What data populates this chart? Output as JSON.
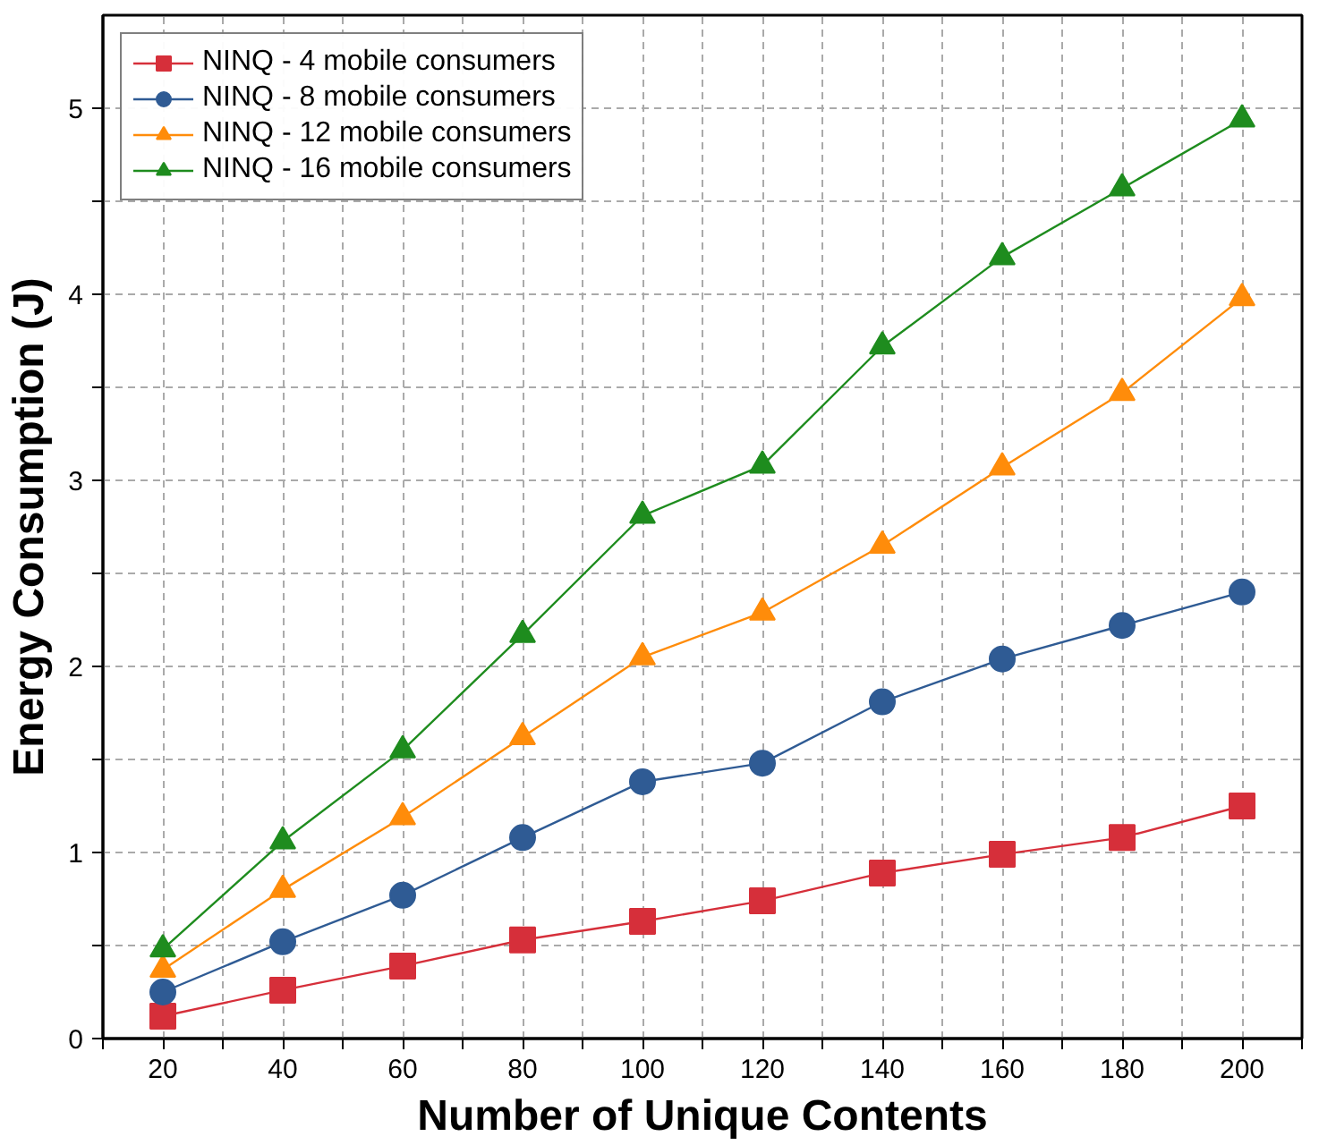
{
  "chart_data": {
    "type": "line",
    "xlabel": "Number of Unique Contents",
    "ylabel": "Energy Consumption (J)",
    "x": [
      20,
      40,
      60,
      80,
      100,
      120,
      140,
      160,
      180,
      200
    ],
    "series": [
      {
        "name": "NINQ - 4 mobile consumers",
        "color": "#d62f3a",
        "marker": "square",
        "values": [
          0.12,
          0.26,
          0.39,
          0.53,
          0.63,
          0.74,
          0.89,
          0.99,
          1.08,
          1.25
        ]
      },
      {
        "name": "NINQ - 8 mobile consumers",
        "color": "#2f5b94",
        "marker": "circle",
        "values": [
          0.25,
          0.52,
          0.77,
          1.08,
          1.38,
          1.48,
          1.81,
          2.04,
          2.22,
          2.4
        ]
      },
      {
        "name": "NINQ - 12 mobile consumers",
        "color": "#ff8c0a",
        "marker": "triangle",
        "values": [
          0.37,
          0.8,
          1.19,
          1.62,
          2.05,
          2.29,
          2.65,
          3.07,
          3.47,
          3.98
        ]
      },
      {
        "name": "NINQ - 16 mobile consumers",
        "color": "#1e8c1e",
        "marker": "triangle",
        "values": [
          0.48,
          1.06,
          1.55,
          2.17,
          2.81,
          3.08,
          3.72,
          4.2,
          4.57,
          4.94
        ]
      }
    ],
    "xlim": [
      10,
      210
    ],
    "xticks": [
      {
        "value": 10,
        "label": null
      },
      20,
      {
        "value": 30,
        "label": null
      },
      40,
      {
        "value": 50,
        "label": null
      },
      60,
      {
        "value": 70,
        "label": null
      },
      80,
      {
        "value": 90,
        "label": null
      },
      100,
      {
        "value": 110,
        "label": null
      },
      120,
      {
        "value": 130,
        "label": null
      },
      140,
      {
        "value": 150,
        "label": null
      },
      160,
      {
        "value": 170,
        "label": null
      },
      180,
      {
        "value": 190,
        "label": null
      },
      200,
      {
        "value": 210,
        "label": null
      }
    ],
    "ylim": [
      0,
      5.5
    ],
    "yticks": [
      0,
      {
        "value": 0.5,
        "label": null
      },
      1,
      {
        "value": 1.5,
        "label": null
      },
      2,
      {
        "value": 2.5,
        "label": null
      },
      3,
      {
        "value": 3.5,
        "label": null
      },
      4,
      {
        "value": 4.5,
        "label": null
      },
      5
    ],
    "grid": true,
    "legend": "top left",
    "line_style": "solid"
  }
}
